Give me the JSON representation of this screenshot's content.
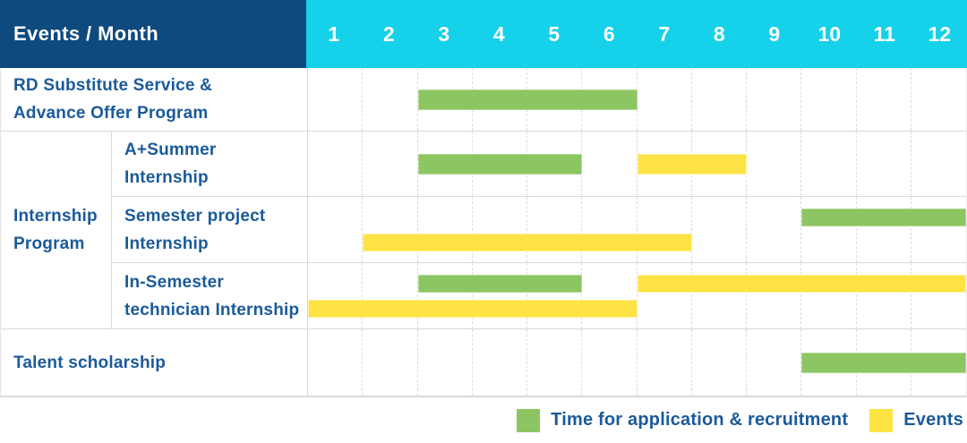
{
  "header": {
    "title": "Events / Month",
    "months": [
      "1",
      "2",
      "3",
      "4",
      "5",
      "6",
      "7",
      "8",
      "9",
      "10",
      "11",
      "12"
    ]
  },
  "legend": {
    "application": {
      "label": "Time for application & recruitment",
      "color": "#8CC663"
    },
    "events": {
      "label": "Events",
      "color": "#FDE343"
    }
  },
  "colors": {
    "header_navy": "#0E4A7D",
    "header_cyan": "#15D1E9",
    "label_text": "#1B5A9A",
    "bar_green": "#8CC663",
    "bar_green_border": "#B3D797",
    "bar_yellow": "#FDE343",
    "bar_yellow_border": "#FEF29D",
    "grid_line": "#DCDCDC",
    "row_line": "#D9D9D9"
  },
  "chart_data": {
    "type": "bar",
    "subtype": "gantt",
    "title": "Events / Month",
    "x_unit": "month",
    "x_range": [
      1,
      12
    ],
    "categories": [
      "1",
      "2",
      "3",
      "4",
      "5",
      "6",
      "7",
      "8",
      "9",
      "10",
      "11",
      "12"
    ],
    "grid": "dashed-vertical-month-lines",
    "legend_position": "bottom-right",
    "legend_entries": [
      "Time for application & recruitment",
      "Events"
    ],
    "group_label_lines": [
      "Internship",
      "Program"
    ],
    "rows": [
      {
        "id": "rd-substitute-service",
        "in_group": false,
        "label_lines": [
          "RD Substitute Service &",
          "Advance Offer Program"
        ],
        "bars": [
          {
            "series": "application",
            "start_month": 3,
            "end_month": 6,
            "lane": "center"
          }
        ]
      },
      {
        "id": "a-plus-summer-internship",
        "in_group": true,
        "label_lines": [
          "A+Summer",
          "Internship"
        ],
        "bars": [
          {
            "series": "application",
            "start_month": 3,
            "end_month": 5,
            "lane": "center"
          },
          {
            "series": "events",
            "start_month": 7,
            "end_month": 8,
            "lane": "center"
          }
        ]
      },
      {
        "id": "semester-project-internship",
        "in_group": true,
        "label_lines": [
          "Semester project",
          "Internship"
        ],
        "bars": [
          {
            "series": "application",
            "start_month": 10,
            "end_month": 12,
            "lane": "top"
          },
          {
            "series": "events",
            "start_month": 2,
            "end_month": 7,
            "lane": "bottom"
          }
        ]
      },
      {
        "id": "in-semester-technician-internship",
        "in_group": true,
        "label_lines": [
          "In-Semester",
          "technician Internship"
        ],
        "bars": [
          {
            "series": "application",
            "start_month": 3,
            "end_month": 5,
            "lane": "top"
          },
          {
            "series": "events",
            "start_month": 7,
            "end_month": 12,
            "lane": "top"
          },
          {
            "series": "events",
            "start_month": 1,
            "end_month": 6,
            "lane": "bottom"
          }
        ]
      },
      {
        "id": "talent-scholarship",
        "in_group": false,
        "label_lines": [
          "Talent scholarship"
        ],
        "bars": [
          {
            "series": "application",
            "start_month": 10,
            "end_month": 12,
            "lane": "center"
          }
        ]
      }
    ]
  }
}
